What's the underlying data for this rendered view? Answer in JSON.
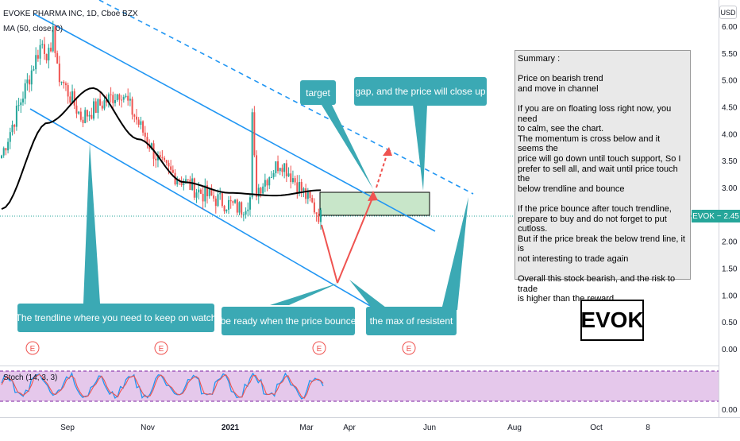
{
  "header": {
    "symbol_line": "EVOKE PHARMA INC, 1D, Cboe BZX",
    "ma_line": "MA (50, close, 0)",
    "stoch_line": "Stoch (14, 3, 3)",
    "currency": "USD"
  },
  "price_badge": "EVOK − 2.45",
  "ticker_box": "EVOK",
  "summary_text": "Summary :\n\nPrice on bearish trend\nand move in channel\n\nIf you are on floating loss right now, you need\nto calm, see the chart.\nThe momentum is cross below and it seems the\nprice will go down until touch support, So I\nprefer to sell all, and wait until price touch the\nbelow trendline and bounce\n\nIf the price bounce after touch trendline,\nprepare to buy and do not forget to put cutloss.\nBut if the price break the below trend line, it is\nnot interesting to trade again\n\nOverall this stock bearish, and the risk to trade\nis higher than the reward",
  "callouts": {
    "target": "target",
    "gap": "gap, and the price will close up",
    "trendline": "The trendline where you need to keep on watch",
    "bounce": "be ready when the price bounce",
    "max_resist": "the max of resistent"
  },
  "earnings_marker": "E",
  "colors": {
    "channel": "#2196f3",
    "ma": "#000000",
    "up": "#26a69a",
    "down": "#ef5350",
    "callout": "#3ba9b4",
    "zone": "#c8e6c9",
    "stoch_bg": "#e1bee7",
    "stoch_k": "#2196f3",
    "stoch_d": "#ef5350"
  },
  "chart_data": {
    "type": "candlestick",
    "symbol": "EVOK",
    "timeframe": "1D",
    "exchange": "Cboe BZX",
    "last_price": 2.45,
    "price_axis": {
      "ticks": [
        "6.00",
        "5.50",
        "5.00",
        "4.50",
        "4.00",
        "3.50",
        "3.00",
        "2.50",
        "2.00",
        "1.50",
        "1.00",
        "0.50",
        "0.00"
      ],
      "range": [
        0,
        6.2
      ]
    },
    "time_axis": {
      "ticks": [
        "Sep",
        "Nov",
        "2021",
        "Mar",
        "Apr",
        "Jun",
        "Aug",
        "Oct",
        "8"
      ]
    },
    "approx_close_path": [
      {
        "period": "Aug 2020",
        "close": 3.6
      },
      {
        "period": "late Aug 2020",
        "close": 5.7
      },
      {
        "period": "Sep 2020",
        "close": 4.3
      },
      {
        "period": "Oct 2020",
        "close": 4.8
      },
      {
        "period": "Nov 2020",
        "close": 3.4
      },
      {
        "period": "Dec 2020",
        "close": 2.9
      },
      {
        "period": "Jan 2021",
        "close": 2.6
      },
      {
        "period": "Feb 2021",
        "close": 3.5
      },
      {
        "period": "Mar 2021",
        "close": 2.45
      }
    ],
    "ma50_approx": [
      {
        "period": "Aug 2020",
        "value": 2.6
      },
      {
        "period": "Sep 2020",
        "value": 4.2
      },
      {
        "period": "Oct 2020",
        "value": 4.85
      },
      {
        "period": "Nov 2020",
        "value": 3.9
      },
      {
        "period": "Dec 2020",
        "value": 3.1
      },
      {
        "period": "Jan 2021",
        "value": 2.9
      },
      {
        "period": "Feb 2021",
        "value": 2.85
      },
      {
        "period": "Mar 2021",
        "value": 2.95
      }
    ],
    "zone": {
      "label": "gap zone",
      "low": 2.5,
      "high": 2.93
    },
    "stochastic": {
      "params": "14, 3, 3",
      "upper": 80,
      "lower": 20,
      "axis_tick": "0.00"
    }
  }
}
